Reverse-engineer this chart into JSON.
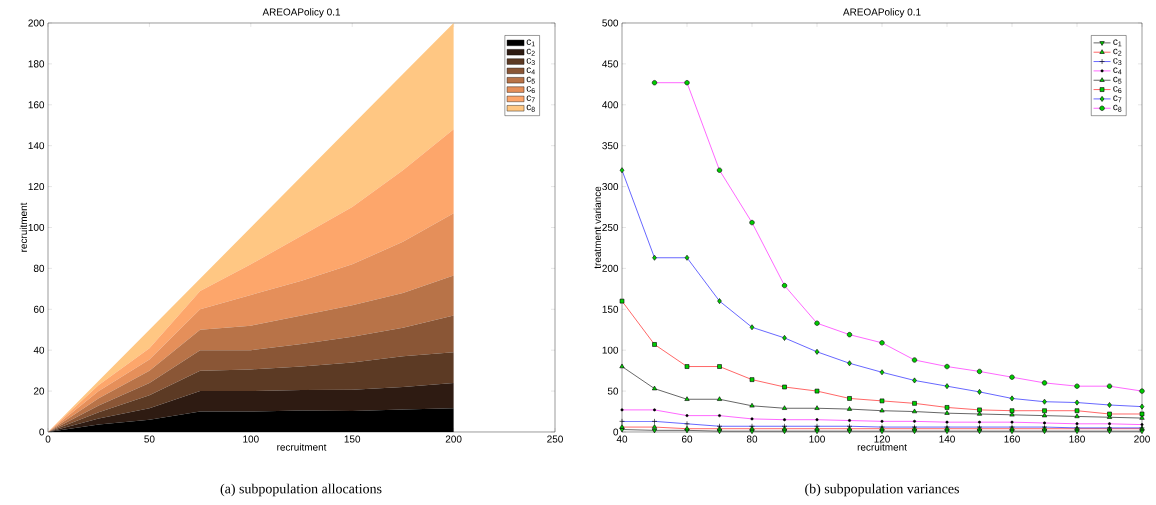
{
  "chart_data": [
    {
      "type": "area",
      "stacked": true,
      "title": "AREOAPolicy 0.1",
      "xlabel": "recruitment",
      "ylabel": "recruitment",
      "legend": "top right",
      "x": [
        0,
        25,
        50,
        75,
        100,
        125,
        150,
        175,
        200
      ],
      "series": [
        {
          "name": "c$_{1}$",
          "color": "#000000",
          "values": [
            0,
            3.6,
            6,
            10,
            10,
            10.5,
            10.2,
            11,
            11.6
          ]
        },
        {
          "name": "c$_{2}$",
          "color": "#2e1b12",
          "values": [
            0,
            3,
            5.6,
            10,
            10,
            10,
            10.5,
            11,
            12.4
          ]
        },
        {
          "name": "c$_{3}$",
          "color": "#5c3a24",
          "values": [
            0,
            3,
            6.4,
            10,
            10.6,
            11.5,
            13.3,
            15,
            15
          ]
        },
        {
          "name": "c$_{4}$",
          "color": "#8a5636",
          "values": [
            0,
            3.4,
            6,
            10,
            9.4,
            11,
            12.6,
            14,
            18
          ]
        },
        {
          "name": "c$_{5}$",
          "color": "#b87348",
          "values": [
            0,
            3.5,
            6,
            10,
            12,
            14,
            15.4,
            17,
            19.5
          ]
        },
        {
          "name": "c$_{6}$",
          "color": "#e58f5a",
          "values": [
            0,
            3.5,
            5.5,
            10,
            15,
            17,
            20,
            25,
            30.5
          ]
        },
        {
          "name": "c$_{7}$",
          "color": "#fda66b",
          "values": [
            0,
            3,
            5.5,
            9,
            15,
            22,
            28,
            35,
            41
          ]
        },
        {
          "name": "c$_{8}$",
          "color": "#ffc783",
          "values": [
            0,
            2,
            9,
            6,
            18,
            29,
            40,
            47,
            52
          ]
        }
      ],
      "xlim": [
        0,
        250
      ],
      "xticks": [
        0,
        50,
        100,
        150,
        200,
        250
      ],
      "ylim": [
        0,
        200
      ],
      "yticks": [
        0,
        20,
        40,
        60,
        80,
        100,
        120,
        140,
        160,
        180,
        200
      ],
      "annotations": [
        "(a) subpopulation allocations"
      ]
    },
    {
      "type": "line",
      "title": "AREOAPolicy 0.1",
      "xlabel": "recruitment",
      "ylabel": "treatment variance",
      "legend": "top right",
      "x": [
        40,
        50,
        60,
        70,
        80,
        90,
        100,
        110,
        120,
        130,
        140,
        150,
        160,
        170,
        180,
        190,
        200
      ],
      "series": [
        {
          "name": "c$_{1}$",
          "color": "#000000",
          "marker": "triangle_down",
          "values": [
            3,
            2,
            2,
            1,
            1,
            1,
            1,
            1,
            1,
            1,
            1,
            1,
            1,
            1,
            1,
            1,
            1
          ]
        },
        {
          "name": "c$_{2}$",
          "color": "#ff0000",
          "marker": "triangle",
          "values": [
            6,
            6,
            4,
            4,
            4,
            4,
            4,
            4,
            4,
            4,
            4,
            4,
            4,
            4,
            4,
            4,
            4
          ]
        },
        {
          "name": "c$_{3}$",
          "color": "#0000ff",
          "marker": "cross",
          "values": [
            13,
            13,
            10,
            7,
            7,
            7,
            7,
            7,
            6,
            6,
            6,
            6,
            6,
            6,
            5,
            5,
            5
          ]
        },
        {
          "name": "c$_{4}$",
          "color": "#ff00ff",
          "marker": "point",
          "values": [
            27,
            27,
            20,
            20,
            16,
            15,
            15,
            14,
            13,
            13,
            12,
            12,
            12,
            11,
            10,
            10,
            9
          ]
        },
        {
          "name": "c$_{5}$",
          "color": "#000000",
          "marker": "triangle",
          "values": [
            80,
            53,
            40,
            40,
            32,
            29,
            29,
            28,
            26,
            25,
            23,
            22,
            21,
            20,
            19,
            18,
            17
          ]
        },
        {
          "name": "c$_{6}$",
          "color": "#ff0000",
          "marker": "square",
          "values": [
            160,
            107,
            80,
            80,
            64,
            55,
            50,
            41,
            38,
            35,
            30,
            27,
            26,
            26,
            26,
            22,
            22
          ]
        },
        {
          "name": "c$_{7}$",
          "color": "#0000ff",
          "marker": "diamond",
          "values": [
            320,
            213,
            213,
            160,
            128,
            115,
            98,
            84,
            73,
            63,
            56,
            49,
            41,
            37,
            36,
            33,
            31
          ]
        },
        {
          "name": "c$_{8}$",
          "color": "#ff00ff",
          "marker": "circle",
          "values": [
            null,
            427,
            427,
            320,
            256,
            179,
            133,
            119,
            109,
            88,
            80,
            74,
            67,
            60,
            56,
            56,
            50
          ]
        }
      ],
      "xlim": [
        40,
        200
      ],
      "xticks": [
        40,
        60,
        80,
        100,
        120,
        140,
        160,
        180,
        200
      ],
      "ylim": [
        0,
        500
      ],
      "yticks": [
        0,
        50,
        100,
        150,
        200,
        250,
        300,
        350,
        400,
        450,
        500
      ],
      "annotations": [
        "(b) subpopulation variances"
      ]
    }
  ]
}
